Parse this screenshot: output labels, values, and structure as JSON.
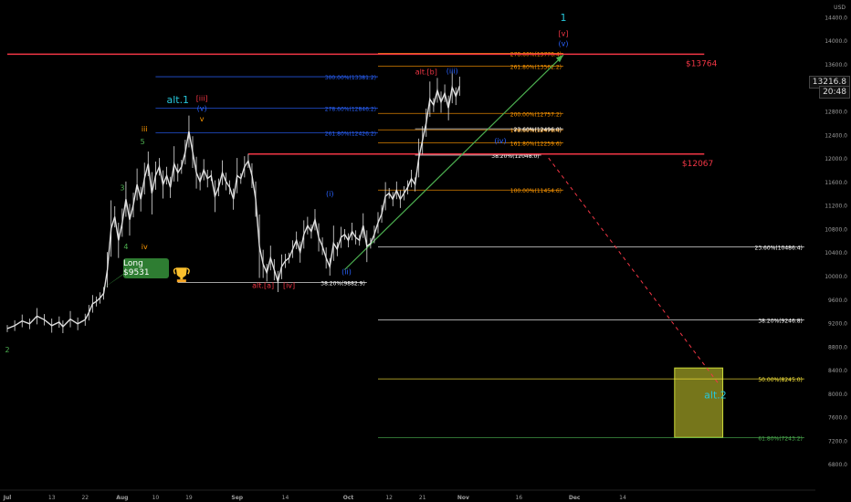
{
  "chart_data": {
    "type": "line",
    "title": "",
    "ylim": [
      6400,
      14600
    ],
    "y_ticks": [
      "14400.0",
      "14000.0",
      "13600.0",
      "13200.0",
      "12800.0",
      "12400.0",
      "12000.0",
      "11600.0",
      "11200.0",
      "10800.0",
      "10400.0",
      "10000.0",
      "9600.0",
      "9200.0",
      "8800.0",
      "8400.0",
      "8000.0",
      "7600.0",
      "7200.0",
      "6800.0"
    ],
    "y_tick_values": [
      14400,
      14000,
      13600,
      13200,
      12800,
      12400,
      12000,
      11600,
      11200,
      10800,
      10400,
      10000,
      9600,
      9200,
      8800,
      8400,
      8000,
      7600,
      7200,
      6800
    ],
    "currency_label": "USD",
    "x_ticks": [
      "Jul",
      "13",
      "22",
      "Aug",
      "10",
      "19",
      "Sep",
      "14",
      "Oct",
      "12",
      "21",
      "Nov",
      "16",
      "Dec",
      "14"
    ],
    "x_tick_days": [
      0,
      12,
      21,
      31,
      40,
      49,
      62,
      75,
      92,
      103,
      112,
      123,
      138,
      153,
      166
    ],
    "x_tick_bold": [
      true,
      false,
      false,
      true,
      false,
      false,
      true,
      false,
      true,
      false,
      false,
      true,
      false,
      true,
      false
    ],
    "x_range": [
      0,
      175
    ],
    "price_series": [
      [
        0,
        9100
      ],
      [
        2,
        9150
      ],
      [
        4,
        9230
      ],
      [
        6,
        9180
      ],
      [
        8,
        9310
      ],
      [
        10,
        9250
      ],
      [
        12,
        9150
      ],
      [
        14,
        9210
      ],
      [
        15,
        9130
      ],
      [
        17,
        9260
      ],
      [
        19,
        9180
      ],
      [
        21,
        9250
      ],
      [
        22,
        9370
      ],
      [
        23,
        9520
      ],
      [
        24,
        9560
      ],
      [
        25,
        9620
      ],
      [
        26,
        9700
      ],
      [
        27,
        10100
      ],
      [
        28,
        10800
      ],
      [
        29,
        11000
      ],
      [
        30,
        10600
      ],
      [
        31,
        10900
      ],
      [
        32,
        11300
      ],
      [
        33,
        10950
      ],
      [
        34,
        11200
      ],
      [
        35,
        11550
      ],
      [
        36,
        11300
      ],
      [
        37,
        11650
      ],
      [
        38,
        11900
      ],
      [
        39,
        11400
      ],
      [
        40,
        11700
      ],
      [
        41,
        11850
      ],
      [
        42,
        11550
      ],
      [
        43,
        11700
      ],
      [
        44,
        11500
      ],
      [
        45,
        11900
      ],
      [
        46,
        11750
      ],
      [
        47,
        11850
      ],
      [
        48,
        12100
      ],
      [
        49,
        12450
      ],
      [
        50,
        12100
      ],
      [
        51,
        11750
      ],
      [
        52,
        11600
      ],
      [
        53,
        11800
      ],
      [
        54,
        11650
      ],
      [
        55,
        11700
      ],
      [
        56,
        11350
      ],
      [
        57,
        11500
      ],
      [
        58,
        11750
      ],
      [
        59,
        11600
      ],
      [
        60,
        11500
      ],
      [
        61,
        11300
      ],
      [
        62,
        11700
      ],
      [
        63,
        11650
      ],
      [
        64,
        11850
      ],
      [
        65,
        11950
      ],
      [
        66,
        11700
      ],
      [
        67,
        11300
      ],
      [
        68,
        10500
      ],
      [
        69,
        10200
      ],
      [
        70,
        10050
      ],
      [
        71,
        10300
      ],
      [
        72,
        10100
      ],
      [
        73,
        9900
      ],
      [
        74,
        10150
      ],
      [
        75,
        10250
      ],
      [
        76,
        10300
      ],
      [
        77,
        10450
      ],
      [
        78,
        10600
      ],
      [
        79,
        10400
      ],
      [
        80,
        10700
      ],
      [
        81,
        10850
      ],
      [
        82,
        10750
      ],
      [
        83,
        10950
      ],
      [
        84,
        10650
      ],
      [
        85,
        10500
      ],
      [
        86,
        10300
      ],
      [
        87,
        10150
      ],
      [
        88,
        10550
      ],
      [
        89,
        10450
      ],
      [
        90,
        10650
      ],
      [
        91,
        10700
      ],
      [
        92,
        10600
      ],
      [
        93,
        10750
      ],
      [
        94,
        10650
      ],
      [
        95,
        10600
      ],
      [
        96,
        10850
      ],
      [
        97,
        10500
      ],
      [
        98,
        10550
      ],
      [
        99,
        10700
      ],
      [
        100,
        10900
      ],
      [
        101,
        11050
      ],
      [
        102,
        11350
      ],
      [
        103,
        11400
      ],
      [
        104,
        11300
      ],
      [
        105,
        11450
      ],
      [
        106,
        11300
      ],
      [
        107,
        11400
      ],
      [
        108,
        11500
      ],
      [
        109,
        11650
      ],
      [
        110,
        11550
      ],
      [
        111,
        12000
      ],
      [
        112,
        12300
      ],
      [
        113,
        12600
      ],
      [
        114,
        13000
      ],
      [
        115,
        12900
      ],
      [
        116,
        13150
      ],
      [
        117,
        12950
      ],
      [
        118,
        13100
      ],
      [
        119,
        12850
      ],
      [
        120,
        13200
      ],
      [
        121,
        13050
      ],
      [
        122,
        13220
      ]
    ],
    "fib_lines": [
      {
        "label": "300.00%(13381.2)",
        "value": 13381.2,
        "x0": 40,
        "x1": 100,
        "color": "#2962ff",
        "label_side": "right"
      },
      {
        "label": "278.60%(12846.2)",
        "value": 12846.2,
        "x0": 40,
        "x1": 100,
        "color": "#2962ff",
        "label_side": "right"
      },
      {
        "label": "261.80%(12426.2)",
        "value": 12426.2,
        "x0": 40,
        "x1": 100,
        "color": "#2962ff",
        "label_side": "right"
      },
      {
        "label": "278.60%(13778.4)",
        "value": 13778.4,
        "x0": 100,
        "x1": 150,
        "color": "#ff9800",
        "label_side": "right"
      },
      {
        "label": "261.80%(13562.2)",
        "value": 13562.2,
        "x0": 100,
        "x1": 150,
        "color": "#ff9800",
        "label_side": "right"
      },
      {
        "label": "200.00%(12757.2)",
        "value": 12757.2,
        "x0": 100,
        "x1": 150,
        "color": "#ff9800",
        "label_side": "right"
      },
      {
        "label": "178.60%(12478.4)",
        "value": 12478.4,
        "x0": 100,
        "x1": 150,
        "color": "#ff9800",
        "label_side": "right"
      },
      {
        "label": "161.80%(12259.6)",
        "value": 12259.6,
        "x0": 100,
        "x1": 150,
        "color": "#ff9800",
        "label_side": "right"
      },
      {
        "label": "100.00%(11454.6)",
        "value": 11454.6,
        "x0": 100,
        "x1": 150,
        "color": "#ff9800",
        "label_side": "right"
      },
      {
        "label": "23.60%(12496.0)",
        "value": 12496.0,
        "x0": 110,
        "x1": 150,
        "color": "#ffffff",
        "label_side": "right"
      },
      {
        "label": "38.20%(12048.0)",
        "value": 12048.0,
        "x0": 110,
        "x1": 144,
        "color": "#ffffff",
        "label_side": "right"
      },
      {
        "label": "23.60%(10486.4)",
        "value": 10486.4,
        "x0": 100,
        "x1": 215,
        "color": "#ffffff",
        "label_side": "right"
      },
      {
        "label": "38.20%(9882.9)",
        "value": 9882.9,
        "x0": 46,
        "x1": 97,
        "color": "#ffffff",
        "label_side": "right"
      },
      {
        "label": "38.20%(9246.8)",
        "value": 9246.8,
        "x0": 100,
        "x1": 215,
        "color": "#ffffff",
        "label_side": "right"
      },
      {
        "label": "50.00%(8245.0)",
        "value": 8245.0,
        "x0": 100,
        "x1": 215,
        "color": "#ffeb3b",
        "label_side": "right"
      },
      {
        "label": "61.80%(7243.2)",
        "value": 7243.2,
        "x0": 100,
        "x1": 215,
        "color": "#4caf50",
        "label_side": "right"
      }
    ],
    "resistance_lines": [
      {
        "label": "$13764",
        "value": 13764,
        "x0": 0,
        "x1": 188,
        "color": "#f23645",
        "label_x": 183
      },
      {
        "label": "$12067",
        "value": 12067,
        "x0": 65,
        "x1": 188,
        "color": "#f23645",
        "label_x": 182
      }
    ],
    "wave_labels": [
      {
        "text": "3",
        "x": 31,
        "y": 11450,
        "color": "#4caf50"
      },
      {
        "text": "4",
        "x": 32,
        "y": 10450,
        "color": "#4caf50"
      },
      {
        "text": "5",
        "x": 36.5,
        "y": 12230,
        "color": "#4caf50"
      },
      {
        "text": "iii",
        "x": 37,
        "y": 12450,
        "color": "#ff9800"
      },
      {
        "text": "iv",
        "x": 37,
        "y": 10450,
        "color": "#ff9800"
      },
      {
        "text": "v",
        "x": 52.5,
        "y": 12620,
        "color": "#ff9800"
      },
      {
        "text": "alt.1",
        "x": 46,
        "y": 12930,
        "color": "#26c6da",
        "size": 11
      },
      {
        "text": "[iii]",
        "x": 52.5,
        "y": 12970,
        "color": "#f23645"
      },
      {
        "text": "(v)",
        "x": 52.5,
        "y": 12800,
        "color": "#2962ff"
      },
      {
        "text": "alt.[a]",
        "x": 69,
        "y": 9790,
        "color": "#f23645"
      },
      {
        "text": "[iv]",
        "x": 76,
        "y": 9790,
        "color": "#f23645"
      },
      {
        "text": "(i)",
        "x": 87,
        "y": 11350,
        "color": "#2962ff"
      },
      {
        "text": "(ii)",
        "x": 91.5,
        "y": 10020,
        "color": "#2962ff"
      },
      {
        "text": "(iii)",
        "x": 120,
        "y": 13440,
        "color": "#2962ff"
      },
      {
        "text": "(iv)",
        "x": 133,
        "y": 12250,
        "color": "#2962ff"
      },
      {
        "text": "alt.[b]",
        "x": 113,
        "y": 13420,
        "color": "#f23645"
      },
      {
        "text": "1",
        "x": 150,
        "y": 14330,
        "color": "#26c6da",
        "size": 11
      },
      {
        "text": "[v]",
        "x": 150,
        "y": 14070,
        "color": "#f23645"
      },
      {
        "text": "(v)",
        "x": 150,
        "y": 13900,
        "color": "#2962ff"
      },
      {
        "text": "alt.2",
        "x": 191,
        "y": 7910,
        "color": "#26c6da",
        "size": 11
      },
      {
        "text": "2",
        "x": 0,
        "y": 8700,
        "color": "#4caf50"
      }
    ],
    "trend_line": {
      "x0": 91,
      "y0": 10100,
      "x1": 150,
      "y1": 13750,
      "color": "#4caf50"
    },
    "projection_line": {
      "x0": 146,
      "y0": 12000,
      "x1": 192,
      "y1": 8150,
      "color": "#f23645"
    },
    "target_box": {
      "x0": 180,
      "x1": 193,
      "y0": 7250,
      "y1": 8430,
      "color": "#9e9d24"
    },
    "annotations": {
      "long_entry": "Long $9531",
      "trophy": "trophy-icon"
    },
    "current_price": "13216.8",
    "countdown": "20:48"
  }
}
